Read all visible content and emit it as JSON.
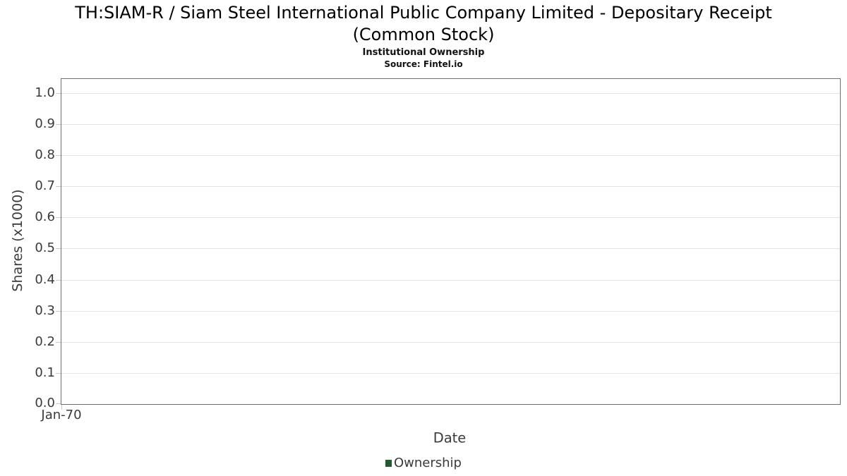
{
  "header": {
    "title_line1": "TH:SIAM-R / Siam Steel International Public Company Limited - Depositary Receipt",
    "title_line2": "(Common Stock)",
    "subtitle": "Institutional Ownership",
    "source": "Source: Fintel.io"
  },
  "chart_data": {
    "type": "line",
    "title": "TH:SIAM-R / Siam Steel International Public Company Limited - Depositary Receipt (Common Stock)",
    "subtitle": "Institutional Ownership",
    "source": "Source: Fintel.io",
    "xlabel": "Date",
    "ylabel": "Shares (x1000)",
    "x_ticks": [
      "Jan-70"
    ],
    "y_ticks": [
      0.0,
      0.1,
      0.2,
      0.3,
      0.4,
      0.5,
      0.6,
      0.7,
      0.8,
      0.9,
      1.0
    ],
    "ylim": [
      0.0,
      1.045
    ],
    "grid": true,
    "legend_position": "bottom-center",
    "legend": [
      {
        "label": "Ownership",
        "color": "#215c2f"
      }
    ],
    "series": [
      {
        "name": "Ownership",
        "x": [],
        "values": []
      }
    ]
  }
}
